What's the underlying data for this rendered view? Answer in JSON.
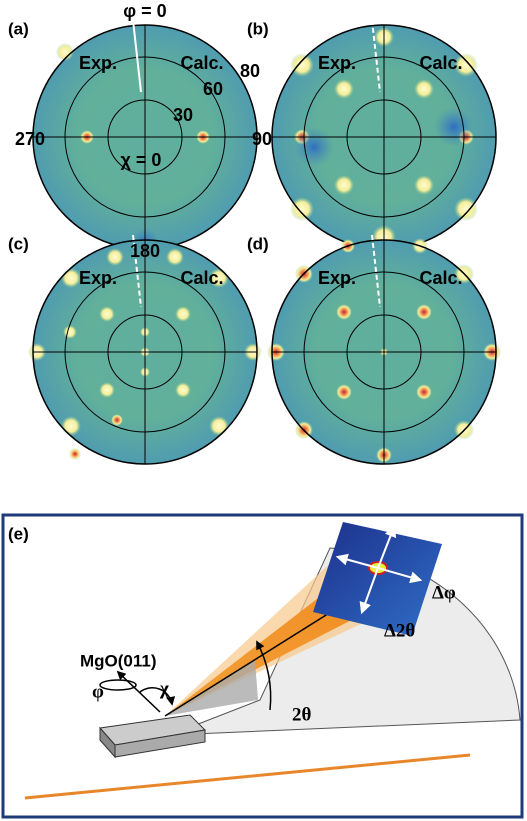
{
  "panels": [
    {
      "label": "(a)",
      "exp": "Exp.",
      "calc": "Calc."
    },
    {
      "label": "(b)",
      "exp": "Exp.",
      "calc": "Calc."
    },
    {
      "label": "(c)",
      "exp": "Exp.",
      "calc": "Calc."
    },
    {
      "label": "(d)",
      "exp": "Exp.",
      "calc": "Calc."
    }
  ],
  "axes": {
    "phi_top": "φ = 0",
    "chi_80": "80",
    "chi_60": "60",
    "chi_30": "30",
    "chi_0": "χ = 0",
    "phi_270": "270",
    "phi_90": "90",
    "phi_180": "180"
  },
  "setup": {
    "label": "(e)",
    "sample": "MgO(011)",
    "phi": "φ",
    "chi": "χ",
    "two_theta": "2θ",
    "delta_phi": "Δφ",
    "delta_two_theta": "Δ2θ"
  }
}
